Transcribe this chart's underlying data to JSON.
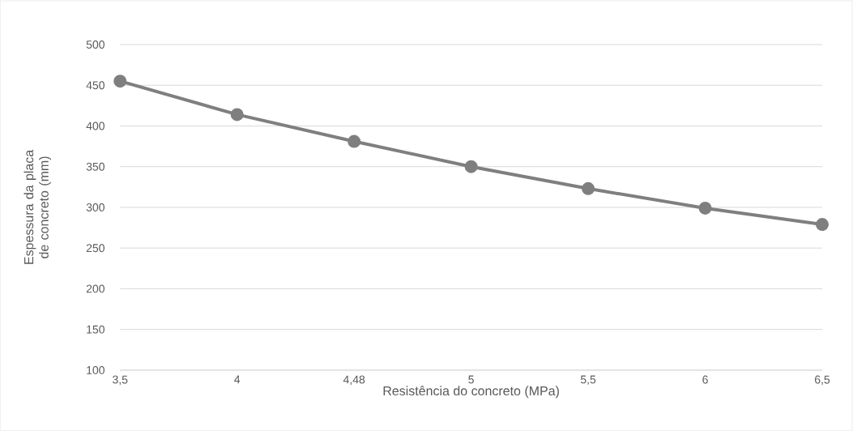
{
  "chart_data": {
    "type": "line",
    "xlabel": "Resistência do concreto (MPa)",
    "ylabel": "Espessura da placa de concreto (mm)",
    "categories": [
      "3,5",
      "4",
      "4,48",
      "5",
      "5,5",
      "6",
      "6,5"
    ],
    "values": [
      455,
      414,
      381,
      350,
      323,
      299,
      279
    ],
    "color": "#7f7f7f",
    "ylim": [
      100,
      500
    ],
    "yticks": [
      100,
      150,
      200,
      250,
      300,
      350,
      400,
      450,
      500
    ],
    "grid": "y",
    "marker": "circle",
    "line_style": "solid"
  }
}
